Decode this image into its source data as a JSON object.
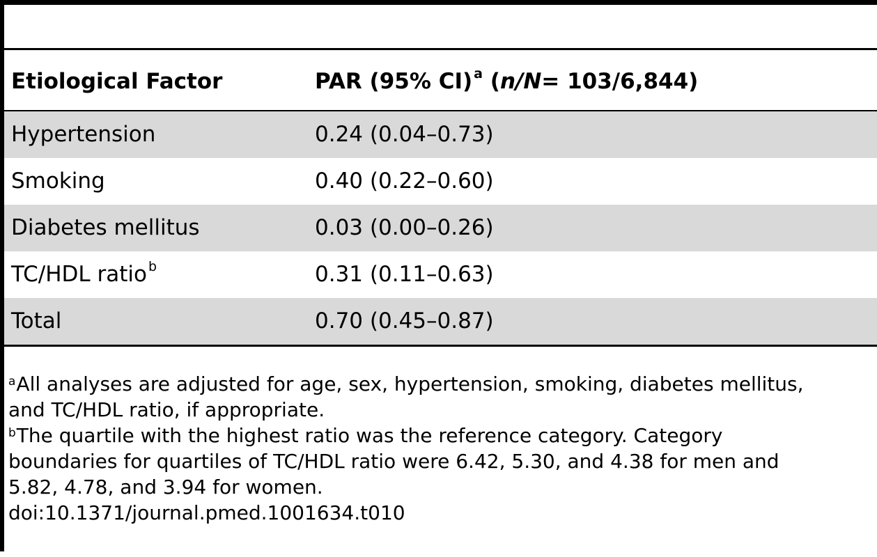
{
  "table": {
    "header": {
      "col1": "Etiological Factor",
      "col2_main": "PAR (95% CI)",
      "col2_sup": "a",
      "col2_open": "(",
      "col2_n": "n/N",
      "col2_value": "= 103/6,844)"
    },
    "rows": [
      {
        "factor": "Hypertension",
        "factor_sup": "",
        "par": "0.24 (0.04–0.73)"
      },
      {
        "factor": "Smoking",
        "factor_sup": "",
        "par": "0.40 (0.22–0.60)"
      },
      {
        "factor": "Diabetes mellitus",
        "factor_sup": "",
        "par": "0.03 (0.00–0.26)"
      },
      {
        "factor": "TC/HDL ratio",
        "factor_sup": "b",
        "par": "0.31 (0.11–0.63)"
      },
      {
        "factor": "Total",
        "factor_sup": "",
        "par": "0.70 (0.45–0.87)"
      }
    ]
  },
  "footnotes": {
    "a_marker": "a",
    "a_line1": "All analyses are adjusted for age, sex, hypertension, smoking, diabetes mellitus,",
    "a_line2": "and TC/HDL ratio, if appropriate.",
    "b_marker": "b",
    "b_line1": "The quartile with the highest ratio was the reference category. Category",
    "b_line2": "boundaries for quartiles of TC/HDL ratio were 6.42, 5.30, and 4.38 for men and",
    "b_line3": "5.82, 4.78, and 3.94 for women."
  },
  "doi": "doi:10.1371/journal.pmed.1001634.t010"
}
